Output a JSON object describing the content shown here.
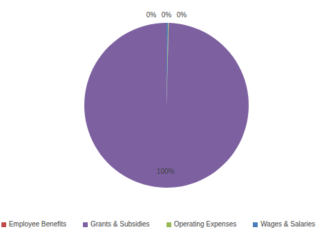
{
  "chart_data": {
    "type": "pie",
    "categories": [
      "Wages & Salaries",
      "Employee Benefits",
      "Operating Expenses",
      "Grants & Subsidies"
    ],
    "values": [
      0.3,
      0.05,
      0.1,
      99.55
    ],
    "value_labels": [
      "0%",
      "0%",
      "0%",
      "100%"
    ],
    "colors": [
      "#4a7ebb",
      "#be4b48",
      "#98b954",
      "#7d60a0"
    ],
    "data_labels": true,
    "legend": "bottom"
  }
}
